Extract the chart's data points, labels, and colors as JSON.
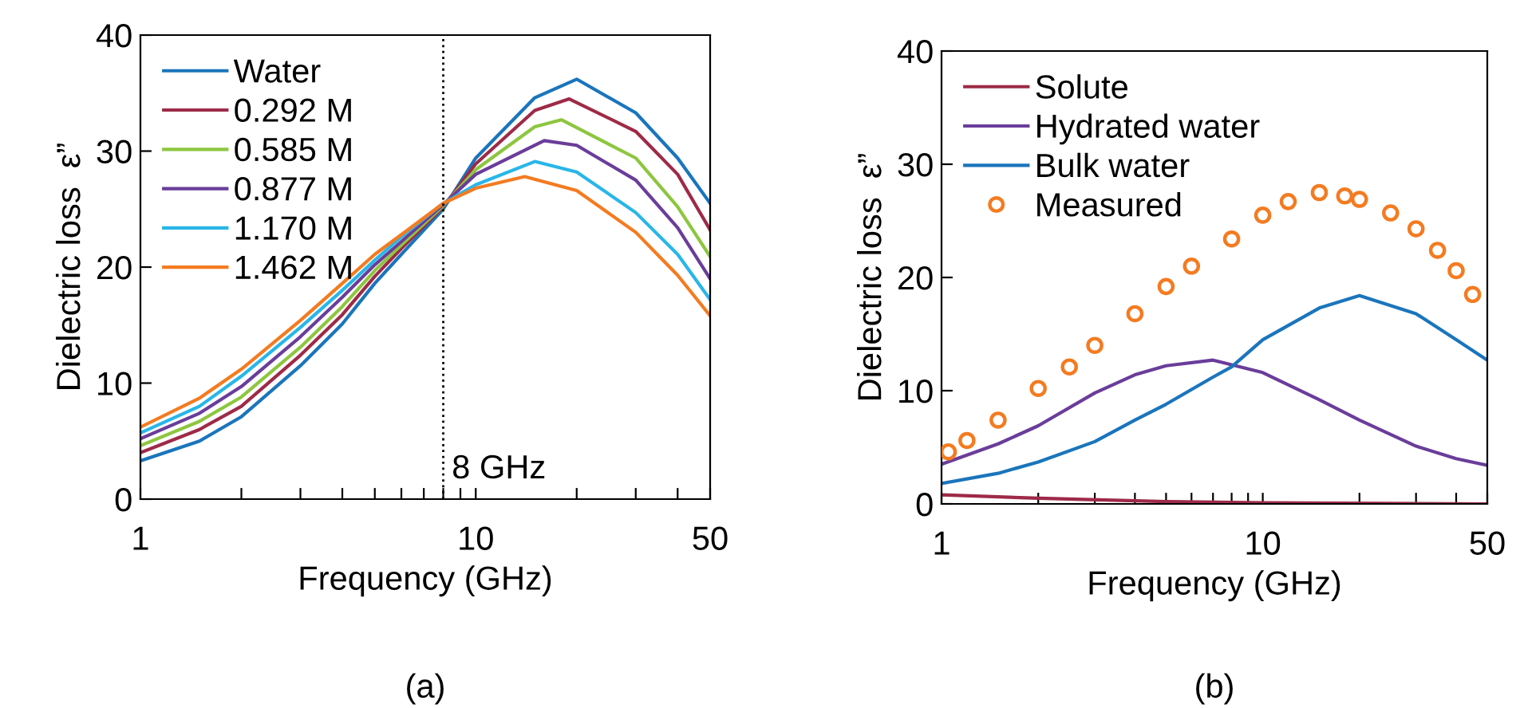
{
  "chart_data": [
    {
      "type": "line",
      "xlabel": "Frequency (GHz)",
      "ylabel": "Dielectric loss  ε”",
      "log": "x",
      "grid": false,
      "legend": "top left",
      "marker": "none",
      "line_style": "solid",
      "xlim": [
        1,
        50
      ],
      "ylim": [
        0,
        40
      ],
      "yticks": [
        0,
        10,
        20,
        30,
        40
      ],
      "xticks": [
        1,
        {
          "value": 2,
          "label": null
        },
        {
          "value": 3,
          "label": null
        },
        {
          "value": 4,
          "label": null
        },
        {
          "value": 5,
          "label": null
        },
        {
          "value": 6,
          "label": null
        },
        {
          "value": 7,
          "label": null
        },
        {
          "value": 8,
          "label": null
        },
        {
          "value": 9,
          "label": null
        },
        10,
        {
          "value": 20,
          "label": null
        },
        {
          "value": 30,
          "label": null
        },
        {
          "value": 40,
          "label": null
        },
        50
      ],
      "ref_lines": [
        {
          "axis": "x",
          "value": 8,
          "label": "8 GHz",
          "color": "#000000",
          "line_style": "dotted"
        }
      ],
      "annotations": [
        "(a)"
      ],
      "series": [
        {
          "name": "Water",
          "color": "#1a75bc",
          "x": [
            1,
            1.5,
            2,
            3,
            4,
            5,
            6,
            8,
            10,
            15,
            20,
            30,
            40,
            50
          ],
          "values": [
            3.3,
            5.0,
            7.1,
            11.5,
            15.1,
            18.6,
            21.1,
            25.0,
            29.4,
            34.6,
            36.2,
            33.3,
            29.4,
            25.5
          ]
        },
        {
          "name": "0.292 M",
          "color": "#9e2a48",
          "x": [
            1,
            1.5,
            2,
            3,
            4,
            5,
            6,
            8,
            10,
            15,
            19,
            30,
            40,
            50
          ],
          "values": [
            4.0,
            6.0,
            8.0,
            12.4,
            15.9,
            19.2,
            21.6,
            25.2,
            28.9,
            33.5,
            34.5,
            31.7,
            28.0,
            23.2
          ]
        },
        {
          "name": "0.585 M",
          "color": "#8dc63f",
          "x": [
            1,
            1.5,
            2,
            3,
            4,
            5,
            6,
            8,
            10,
            15,
            18,
            30,
            40,
            50
          ],
          "values": [
            4.6,
            6.7,
            8.8,
            13.1,
            16.6,
            19.7,
            21.9,
            25.3,
            28.4,
            32.1,
            32.7,
            29.4,
            25.2,
            20.9
          ]
        },
        {
          "name": "0.877 M",
          "color": "#6a3d9a",
          "x": [
            1,
            1.5,
            2,
            3,
            4,
            5,
            6,
            8,
            10,
            16,
            20,
            30,
            40,
            50
          ],
          "values": [
            5.2,
            7.4,
            9.7,
            14.0,
            17.4,
            20.2,
            22.2,
            25.4,
            28.0,
            30.9,
            30.5,
            27.5,
            23.4,
            19.0
          ]
        },
        {
          "name": "1.170 M",
          "color": "#29b6e8",
          "x": [
            1,
            1.5,
            2,
            3,
            4,
            5,
            6,
            8,
            10,
            15,
            20,
            30,
            40,
            50
          ],
          "values": [
            5.7,
            8.0,
            10.6,
            14.8,
            18.0,
            20.6,
            22.6,
            25.5,
            27.1,
            29.1,
            28.2,
            24.7,
            21.1,
            17.2
          ]
        },
        {
          "name": "1.462 M",
          "color": "#f47b20",
          "x": [
            1,
            1.5,
            2,
            3,
            4,
            5,
            6,
            8,
            10,
            14,
            20,
            30,
            40,
            50
          ],
          "values": [
            6.2,
            8.7,
            11.2,
            15.4,
            18.6,
            21.1,
            22.8,
            25.5,
            26.8,
            27.8,
            26.6,
            23.0,
            19.3,
            15.8
          ]
        }
      ]
    },
    {
      "type": "line",
      "xlabel": "Frequency (GHz)",
      "ylabel": "Dielectric loss  ε”",
      "log": "x",
      "grid": false,
      "legend": "top left",
      "line_style": "solid",
      "xlim": [
        1,
        50
      ],
      "ylim": [
        0,
        40
      ],
      "yticks": [
        0,
        10,
        20,
        30,
        40
      ],
      "xticks": [
        1,
        {
          "value": 2,
          "label": null
        },
        {
          "value": 3,
          "label": null
        },
        {
          "value": 4,
          "label": null
        },
        {
          "value": 5,
          "label": null
        },
        {
          "value": 6,
          "label": null
        },
        {
          "value": 7,
          "label": null
        },
        {
          "value": 8,
          "label": null
        },
        {
          "value": 9,
          "label": null
        },
        10,
        {
          "value": 20,
          "label": null
        },
        {
          "value": 30,
          "label": null
        },
        {
          "value": 40,
          "label": null
        },
        50
      ],
      "annotations": [
        "(b)"
      ],
      "series": [
        {
          "name": "Solute",
          "color": "#9e2a48",
          "x": [
            1,
            2,
            5,
            10,
            50
          ],
          "values": [
            0.8,
            0.5,
            0.2,
            0.1,
            0
          ]
        },
        {
          "name": "Hydrated water",
          "color": "#6a3d9a",
          "x": [
            1,
            1.5,
            2,
            3,
            4,
            5,
            7,
            10,
            15,
            20,
            30,
            40,
            50
          ],
          "values": [
            3.5,
            5.3,
            6.9,
            9.8,
            11.4,
            12.2,
            12.7,
            11.6,
            9.2,
            7.4,
            5.1,
            4.0,
            3.4
          ]
        },
        {
          "name": "Bulk water",
          "color": "#1a75bc",
          "x": [
            1,
            1.5,
            2,
            3,
            4,
            5,
            7,
            8,
            10,
            15,
            20,
            30,
            40,
            50
          ],
          "values": [
            1.8,
            2.7,
            3.7,
            5.5,
            7.4,
            8.8,
            11.2,
            12.1,
            14.5,
            17.3,
            18.4,
            16.8,
            14.5,
            12.7
          ]
        },
        {
          "name": "Measured",
          "type": "scatter",
          "marker": "circle",
          "color": "#f47b20",
          "x": [
            1.05,
            1.2,
            1.5,
            2,
            2.5,
            3,
            4,
            5,
            6,
            8,
            10,
            12,
            15,
            18,
            20,
            25,
            30,
            35,
            40,
            45
          ],
          "values": [
            4.6,
            5.6,
            7.4,
            10.2,
            12.1,
            14.0,
            16.8,
            19.2,
            21.0,
            23.4,
            25.5,
            26.7,
            27.5,
            27.2,
            26.9,
            25.7,
            24.3,
            22.4,
            20.6,
            18.5
          ]
        }
      ]
    }
  ]
}
